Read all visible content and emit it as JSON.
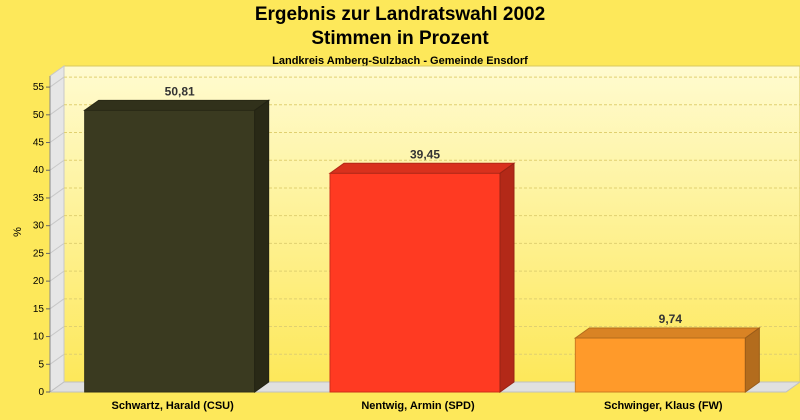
{
  "chart_data": {
    "type": "bar",
    "title": "Ergebnis zur Landratswahl 2002",
    "subtitle": "Stimmen in Prozent",
    "caption": "Landkreis Amberg-Sulzbach - Gemeinde Ensdorf",
    "ylabel": "%",
    "ylim": [
      0,
      57
    ],
    "yticks": [
      0,
      5,
      10,
      15,
      20,
      25,
      30,
      35,
      40,
      45,
      50,
      55
    ],
    "categories": [
      "Schwartz, Harald (CSU)",
      "Nentwig, Armin (SPD)",
      "Schwinger, Klaus (FW)"
    ],
    "values": [
      50.81,
      39.45,
      9.74
    ],
    "value_labels": [
      "50,81",
      "39,45",
      "9,74"
    ],
    "colors": [
      "#3a3a20",
      "#ff3a22",
      "#ff9a2a"
    ],
    "grid": true
  }
}
